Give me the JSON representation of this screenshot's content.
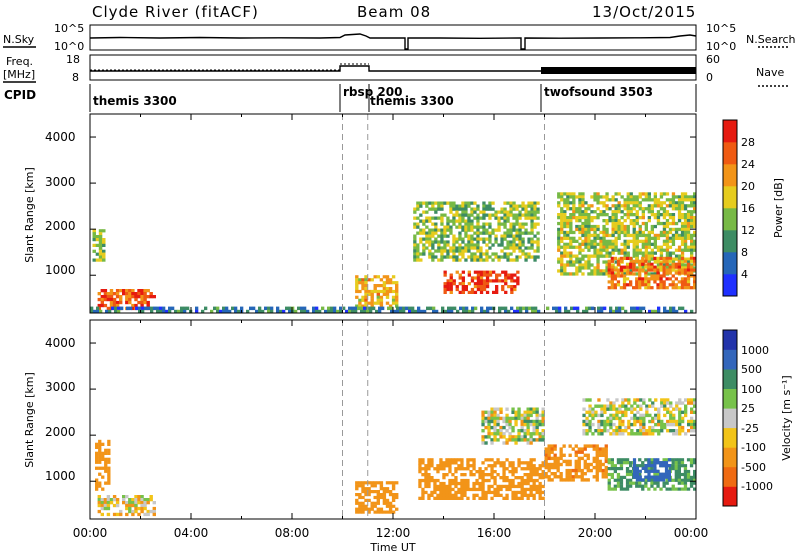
{
  "header": {
    "station": "Clyde River (fitACF)",
    "beam": "Beam 08",
    "date": "13/Oct/2015"
  },
  "noise_panel": {
    "left_label": "N.Sky",
    "right_label": "N.Search",
    "left_ticks": [
      "10^5",
      "10^0"
    ],
    "right_ticks": [
      "10^5",
      "10^0"
    ]
  },
  "freq_panel": {
    "left_label_1": "Freq.",
    "left_label_2": "[MHz]",
    "right_label": "Nave",
    "left_ticks": [
      "18",
      "8"
    ],
    "right_ticks": [
      "60",
      "0"
    ]
  },
  "cpid": {
    "label": "CPID",
    "modes": [
      {
        "name": "themis 3300",
        "start": 0.0,
        "end": 10.0
      },
      {
        "name": "rbsp 200",
        "start": 10.0,
        "end": 11.0
      },
      {
        "name": "themis 3300",
        "start": 11.0,
        "end": 18.0
      },
      {
        "name": "twofsound 3503",
        "start": 18.0,
        "end": 24.0
      }
    ]
  },
  "axes": {
    "xlabel": "Time UT",
    "x_ticks": [
      "00:00",
      "04:00",
      "08:00",
      "12:00",
      "16:00",
      "20:00",
      "00:00"
    ],
    "ylabel": "Slant Range [km]",
    "y_ticks": [
      "1000",
      "2000",
      "3000",
      "4000"
    ]
  },
  "power_colorbar": {
    "title": "Power [dB]",
    "labels": [
      "4",
      "8",
      "12",
      "16",
      "20",
      "24",
      "28"
    ],
    "colors": [
      "#1f30ff",
      "#2566b8",
      "#3d8c64",
      "#77b945",
      "#e6cc1e",
      "#f29418",
      "#ef5a12",
      "#e61a10"
    ]
  },
  "velocity_colorbar": {
    "title": "Velocity [m s⁻¹]",
    "labels": [
      "1000",
      "500",
      "100",
      "25",
      "-25",
      "-100",
      "-500",
      "-1000"
    ],
    "colors": [
      "#2233aa",
      "#3366bb",
      "#3d8c64",
      "#77c24a",
      "#c8c8c8",
      "#f2c418",
      "#f29418",
      "#ef6a12",
      "#e61a10"
    ]
  },
  "chart_data": {
    "type": "heatmap",
    "title": "Clyde River (fitACF) Beam 08 13/Oct/2015",
    "xlabel": "Time UT",
    "ylabel": "Slant Range [km]",
    "xlim": [
      0,
      24
    ],
    "ylim": [
      180,
      4500
    ],
    "x_unit": "hours UT",
    "dashed_lines_hours": [
      10.0,
      11.0,
      18.0
    ],
    "power_panel": {
      "quantity": "Power [dB]",
      "range": [
        0,
        32
      ],
      "regions": [
        {
          "t0": 0.3,
          "t1": 2.6,
          "r0": 250,
          "r1": 700,
          "value": 26
        },
        {
          "t0": 0.1,
          "t1": 0.6,
          "r0": 1300,
          "r1": 2000,
          "value": 14
        },
        {
          "t0": 10.5,
          "t1": 12.2,
          "r0": 300,
          "r1": 1000,
          "value": 20
        },
        {
          "t0": 12.8,
          "t1": 17.8,
          "r0": 1300,
          "r1": 2600,
          "value": 14
        },
        {
          "t0": 14.0,
          "t1": 17.0,
          "r0": 600,
          "r1": 1100,
          "value": 28
        },
        {
          "t0": 18.5,
          "t1": 24.0,
          "r0": 1000,
          "r1": 2800,
          "value": 16
        },
        {
          "t0": 20.5,
          "t1": 24.0,
          "r0": 700,
          "r1": 1400,
          "value": 24
        },
        {
          "t0": 0.0,
          "t1": 24.0,
          "r0": 180,
          "r1": 320,
          "value": 8
        }
      ]
    },
    "velocity_panel": {
      "quantity": "Velocity [m s⁻¹]",
      "range": [
        -1000,
        1000
      ],
      "regions": [
        {
          "t0": 0.3,
          "t1": 2.6,
          "r0": 250,
          "r1": 700,
          "value": -50
        },
        {
          "t0": 0.2,
          "t1": 0.8,
          "r0": 800,
          "r1": 1900,
          "value": -300
        },
        {
          "t0": 10.5,
          "t1": 12.2,
          "r0": 300,
          "r1": 1000,
          "value": -300
        },
        {
          "t0": 13.0,
          "t1": 18.0,
          "r0": 600,
          "r1": 1500,
          "value": -300
        },
        {
          "t0": 15.5,
          "t1": 18.0,
          "r0": 1800,
          "r1": 2600,
          "value": 0
        },
        {
          "t0": 18.0,
          "t1": 20.5,
          "r0": 1000,
          "r1": 1800,
          "value": -400
        },
        {
          "t0": 20.5,
          "t1": 24.0,
          "r0": 800,
          "r1": 1500,
          "value": 150
        },
        {
          "t0": 21.5,
          "t1": 23.0,
          "r0": 1000,
          "r1": 1500,
          "value": 700
        },
        {
          "t0": 19.5,
          "t1": 24.0,
          "r0": 2000,
          "r1": 2800,
          "value": 0
        }
      ]
    }
  }
}
